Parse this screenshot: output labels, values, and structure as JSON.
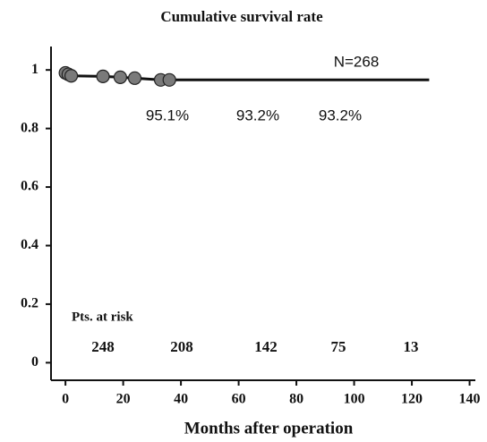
{
  "chart_data": {
    "type": "survival",
    "title": "Cumulative survival rate",
    "x_label": "Months after operation",
    "xlim": [
      -5,
      142
    ],
    "ylim": [
      -0.06,
      1.08
    ],
    "xticks": [
      0,
      20,
      40,
      60,
      80,
      100,
      120,
      140
    ],
    "yticks": [
      0,
      0.2,
      0.4,
      0.6,
      0.8,
      1
    ],
    "series": [
      {
        "name": "Survival",
        "color": "#111111",
        "x": [
          0,
          1,
          2,
          13,
          19,
          24,
          33,
          36,
          126
        ],
        "values": [
          1,
          0.985,
          0.98,
          0.978,
          0.975,
          0.972,
          0.966,
          0.966,
          0.966
        ]
      }
    ],
    "censored": {
      "color": "#7a7a7a",
      "x": [
        0,
        1,
        2,
        13,
        19,
        24,
        33,
        36
      ],
      "values": [
        0.99,
        0.985,
        0.98,
        0.978,
        0.975,
        0.972,
        0.966,
        0.966
      ]
    },
    "annotations": [
      "N=268",
      "95.1%",
      "93.2%",
      "93.2%"
    ],
    "at_risk": {
      "label": "Pts. at risk",
      "values": [
        248,
        208,
        142,
        75,
        13
      ]
    }
  }
}
